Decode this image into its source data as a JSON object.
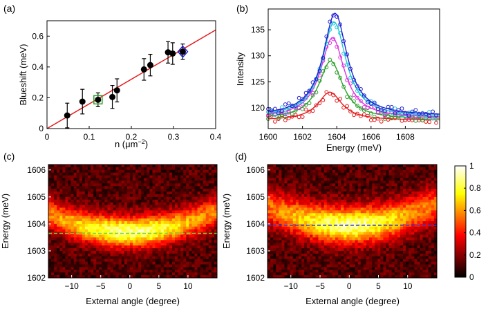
{
  "chart_data": [
    {
      "panel": "(a)",
      "type": "scatter",
      "xlabel_main": "n (μm",
      "xlabel_exp": "−2",
      "xlabel_close": ")",
      "ylabel": "Blueshift (meV)",
      "xlim": [
        0,
        0.4
      ],
      "ylim": [
        0,
        0.7
      ],
      "xticks": [
        "0",
        "0.1",
        "0.2",
        "0.3",
        "0.4"
      ],
      "yticks": [
        "0",
        "0.2",
        "0.4",
        "0.6"
      ],
      "points": [
        {
          "x": 0.048,
          "y": 0.085,
          "err": 0.08
        },
        {
          "x": 0.084,
          "y": 0.175,
          "err": 0.08
        },
        {
          "x": 0.121,
          "y": 0.187,
          "err": 0.045,
          "marker": "green-square"
        },
        {
          "x": 0.155,
          "y": 0.205,
          "err": 0.075
        },
        {
          "x": 0.166,
          "y": 0.248,
          "err": 0.075
        },
        {
          "x": 0.23,
          "y": 0.384,
          "err": 0.07
        },
        {
          "x": 0.245,
          "y": 0.412,
          "err": 0.07
        },
        {
          "x": 0.287,
          "y": 0.495,
          "err": 0.07
        },
        {
          "x": 0.298,
          "y": 0.487,
          "err": 0.07
        },
        {
          "x": 0.322,
          "y": 0.499,
          "err": 0.05,
          "marker": "blue-diamond"
        }
      ],
      "fit_line": {
        "slope": 1.6,
        "intercept": 0.0,
        "color": "#e41a1c"
      }
    },
    {
      "panel": "(b)",
      "type": "line",
      "xlabel": "Energy (meV)",
      "ylabel": "Intensity",
      "xlim": [
        1600,
        1610
      ],
      "ylim": [
        116,
        139
      ],
      "xticks": [
        "1600",
        "1602",
        "1604",
        "1606",
        "1608"
      ],
      "yticks": [
        "120",
        "125",
        "130",
        "135"
      ],
      "series": [
        {
          "name": "red",
          "color": "#e41a1c",
          "peak": 123,
          "center": 1603.6,
          "base": 117.6
        },
        {
          "name": "green",
          "color": "#2ca02c",
          "peak": 129,
          "center": 1603.65,
          "base": 117.8
        },
        {
          "name": "magenta",
          "color": "#e030e0",
          "peak": 133.5,
          "center": 1603.75,
          "base": 118.0
        },
        {
          "name": "cyan",
          "color": "#20c8d8",
          "peak": 136.5,
          "center": 1603.85,
          "base": 118.2
        },
        {
          "name": "blue",
          "color": "#1f1fd0",
          "peak": 138.2,
          "center": 1603.9,
          "base": 118.4
        }
      ]
    },
    {
      "panel": "(c)",
      "type": "heatmap",
      "xlabel": "External angle (degree)",
      "ylabel": "Energy (meV)",
      "xlim": [
        -14,
        15
      ],
      "ylim": [
        1602,
        1606.2
      ],
      "xticks": [
        "−10",
        "−5",
        "0",
        "5",
        "10"
      ],
      "yticks": [
        "1602",
        "1603",
        "1604",
        "1605",
        "1606"
      ],
      "dashed_line": {
        "energy": 1603.65,
        "color": "#7fd13b"
      },
      "peak_energy": 1603.7
    },
    {
      "panel": "(d)",
      "type": "heatmap",
      "xlabel": "External angle (degree)",
      "ylabel": "Energy (meV)",
      "xlim": [
        -14,
        15
      ],
      "ylim": [
        1602,
        1606.2
      ],
      "xticks": [
        "−10",
        "−5",
        "0",
        "5",
        "10"
      ],
      "yticks": [
        "1602",
        "1603",
        "1604",
        "1605",
        "1606"
      ],
      "dashed_line": {
        "energy": 1603.95,
        "color": "#3b3bd8"
      },
      "peak_energy": 1603.95
    },
    {
      "panel": "colorbar",
      "type": "heatmap",
      "range": [
        0,
        1
      ],
      "ticks": [
        "0",
        "0.2",
        "0.4",
        "0.6",
        "0.8",
        "1"
      ]
    }
  ]
}
